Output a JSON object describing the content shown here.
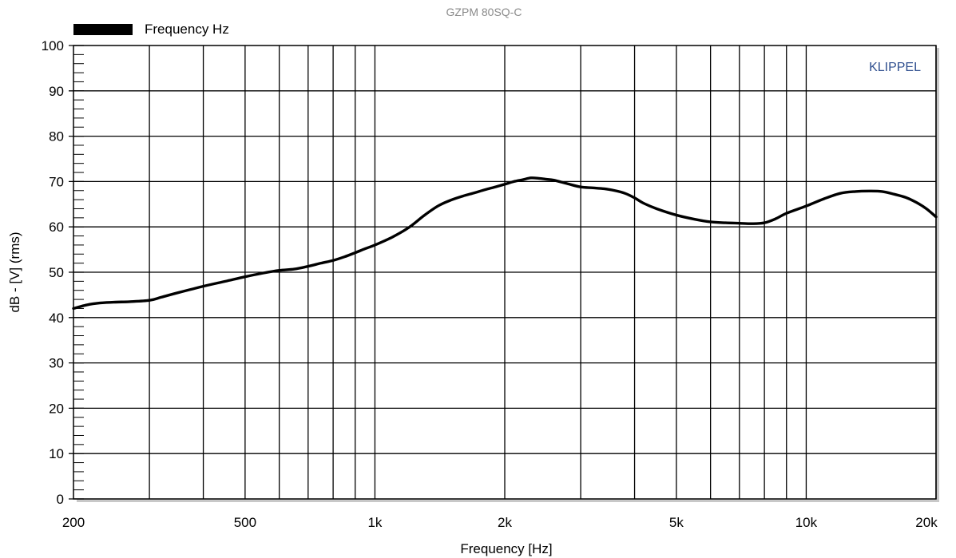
{
  "chart_data": {
    "type": "line",
    "title": "GZPM 80SQ-C",
    "watermark": "KLIPPEL",
    "xlabel": "Frequency [Hz]",
    "ylabel": "dB - [V]  (rms)",
    "x_scale": "log",
    "xlim": [
      200,
      20000
    ],
    "ylim": [
      0,
      100
    ],
    "grid": true,
    "legend_position": "top-left",
    "x_tick_labels": [
      {
        "value": 200,
        "label": "200"
      },
      {
        "value": 500,
        "label": "500"
      },
      {
        "value": 1000,
        "label": "1k"
      },
      {
        "value": 2000,
        "label": "2k"
      },
      {
        "value": 5000,
        "label": "5k"
      },
      {
        "value": 10000,
        "label": "10k"
      },
      {
        "value": 20000,
        "label": "20k"
      }
    ],
    "x_grid": [
      300,
      400,
      500,
      600,
      700,
      800,
      900,
      1000,
      2000,
      3000,
      4000,
      5000,
      6000,
      7000,
      8000,
      9000,
      10000,
      20000
    ],
    "y_ticks": [
      0,
      10,
      20,
      30,
      40,
      50,
      60,
      70,
      80,
      90,
      100
    ],
    "series": [
      {
        "name": "Frequency Hz",
        "color": "#000000",
        "x": [
          200,
          215,
          230,
          250,
          270,
          300,
          320,
          350,
          400,
          450,
          500,
          550,
          600,
          650,
          700,
          750,
          800,
          850,
          900,
          950,
          1000,
          1100,
          1200,
          1300,
          1400,
          1500,
          1600,
          1700,
          1800,
          1900,
          2000,
          2100,
          2200,
          2300,
          2400,
          2500,
          2600,
          2800,
          3000,
          3200,
          3400,
          3600,
          3800,
          4000,
          4200,
          4500,
          5000,
          5500,
          6000,
          6500,
          7000,
          7500,
          8000,
          8500,
          9000,
          10000,
          11000,
          12000,
          13000,
          14000,
          15000,
          16000,
          17000,
          18000,
          19000,
          20000
        ],
        "values": [
          42.0,
          42.8,
          43.2,
          43.4,
          43.5,
          43.8,
          44.5,
          45.5,
          46.9,
          48.0,
          49.0,
          49.8,
          50.4,
          50.7,
          51.3,
          52.0,
          52.6,
          53.4,
          54.3,
          55.2,
          56.0,
          57.8,
          59.9,
          62.5,
          64.6,
          65.9,
          66.8,
          67.5,
          68.2,
          68.8,
          69.4,
          70.0,
          70.4,
          70.8,
          70.7,
          70.5,
          70.3,
          69.5,
          68.8,
          68.6,
          68.4,
          68.0,
          67.4,
          66.4,
          65.2,
          64.0,
          62.6,
          61.7,
          61.1,
          60.9,
          60.8,
          60.7,
          60.9,
          61.8,
          63.0,
          64.6,
          66.2,
          67.4,
          67.8,
          67.9,
          67.8,
          67.2,
          66.5,
          65.4,
          64.0,
          62.2
        ]
      }
    ]
  }
}
